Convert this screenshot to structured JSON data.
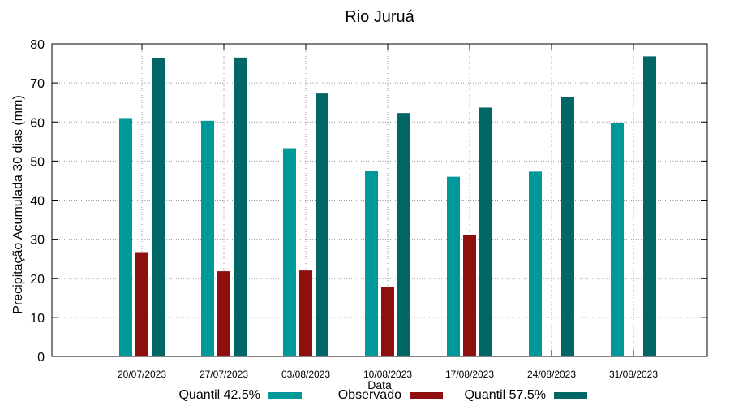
{
  "chart_data": {
    "type": "bar",
    "title": "Rio Juruá",
    "xlabel": "Data",
    "ylabel": "Precipitação Acumulada 30 dias (mm)",
    "ylim": [
      0,
      80
    ],
    "yticks": [
      0,
      10,
      20,
      30,
      40,
      50,
      60,
      70,
      80
    ],
    "grid": true,
    "legend_position": "bottom",
    "categories": [
      "20/07/2023",
      "27/07/2023",
      "03/08/2023",
      "10/08/2023",
      "17/08/2023",
      "24/08/2023",
      "31/08/2023"
    ],
    "series": [
      {
        "name": "Quantil 42.5%",
        "color": "#009999",
        "values": [
          61.0,
          60.3,
          53.3,
          47.5,
          46.0,
          47.3,
          59.8
        ]
      },
      {
        "name": "Observado",
        "color": "#8f0f0f",
        "values": [
          26.7,
          21.8,
          22.0,
          17.8,
          31.0,
          null,
          null
        ]
      },
      {
        "name": "Quantil 57.5%",
        "color": "#006666",
        "values": [
          76.3,
          76.5,
          67.3,
          62.3,
          63.7,
          66.5,
          76.8
        ]
      }
    ]
  }
}
